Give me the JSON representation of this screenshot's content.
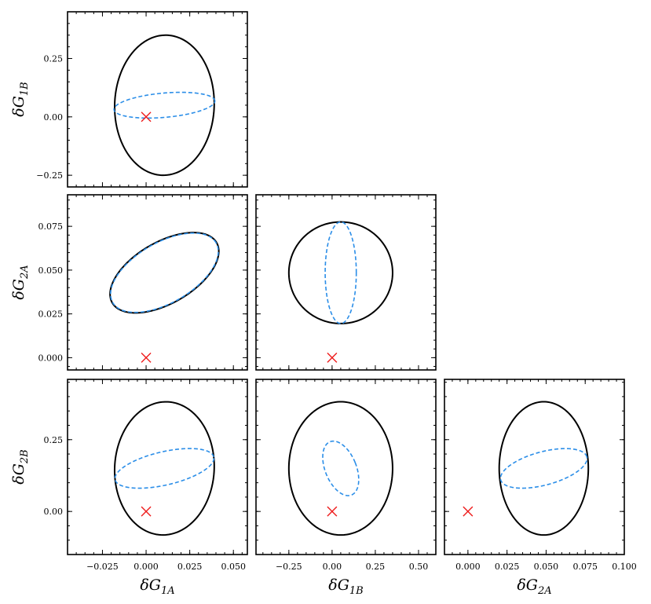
{
  "chart_data": {
    "type": "corner",
    "title": "",
    "legend": "none",
    "grid": false,
    "variables": [
      {
        "key": "G1A",
        "label": "δG",
        "sub": "1A",
        "range": [
          -0.045,
          0.058
        ],
        "ticks": [
          -0.025,
          0.0,
          0.025,
          0.05
        ],
        "tick_labels": [
          "−0.025",
          "0.000",
          "0.025",
          "0.050"
        ]
      },
      {
        "key": "G1B",
        "label": "δG",
        "sub": "1B",
        "range": [
          -0.44,
          0.6
        ],
        "ticks": [
          -0.25,
          0.0,
          0.25,
          0.5
        ],
        "tick_labels": [
          "−0.25",
          "0.00",
          "0.25",
          "0.50"
        ],
        "ylim": [
          -0.3,
          0.45
        ],
        "yticks": [
          -0.25,
          0.0,
          0.25
        ],
        "ytick_labels": [
          "−0.25",
          "0.00",
          "0.25"
        ]
      },
      {
        "key": "G2A",
        "label": "δG",
        "sub": "2A",
        "range": [
          -0.015,
          0.1
        ],
        "ticks": [
          0.0,
          0.025,
          0.05,
          0.075,
          0.1
        ],
        "tick_labels": [
          "0.000",
          "0.025",
          "0.050",
          "0.075",
          "0.100"
        ],
        "ylim": [
          -0.007,
          0.093
        ],
        "yticks": [
          0.0,
          0.025,
          0.05,
          0.075
        ],
        "ytick_labels": [
          "0.000",
          "0.025",
          "0.050",
          "0.075"
        ]
      },
      {
        "key": "G2B",
        "label": "δG",
        "sub": "2B",
        "ylim": [
          -0.15,
          0.46
        ],
        "yticks": [
          0.0,
          0.25
        ],
        "ytick_labels": [
          "0.00",
          "0.25"
        ]
      }
    ],
    "panels": [
      {
        "name": "G1A-vs-G1B",
        "x": "G1A",
        "y": "G1B",
        "marker": [
          0,
          0
        ],
        "ellipses": [
          {
            "style": "solid-black",
            "cx": 0.0105,
            "cy": 0.05,
            "rx": 0.0285,
            "ry": 0.3,
            "angle": -2.0
          },
          {
            "style": "dashed-blue",
            "cx": 0.0105,
            "cy": 0.05,
            "rx": 0.029,
            "ry": 0.052,
            "angle": 5.0
          }
        ]
      },
      {
        "name": "G1A-vs-G2A",
        "x": "G1A",
        "y": "G2A",
        "marker": [
          0,
          0
        ],
        "ellipses": [
          {
            "style": "solid-black",
            "cx": 0.0105,
            "cy": 0.0485,
            "rx": 0.0345,
            "ry": 0.0175,
            "angle": 30.0
          },
          {
            "style": "dashed-blue",
            "cx": 0.0105,
            "cy": 0.0485,
            "rx": 0.0342,
            "ry": 0.0172,
            "angle": 30.0
          }
        ]
      },
      {
        "name": "G1B-vs-G2A",
        "x": "G1B",
        "y": "G2A",
        "marker": [
          0,
          0
        ],
        "ellipses": [
          {
            "style": "solid-black",
            "cx": 0.05,
            "cy": 0.0485,
            "rx": 0.3,
            "ry": 0.029,
            "angle": 0.0
          },
          {
            "style": "dashed-blue",
            "cx": 0.05,
            "cy": 0.0485,
            "rx": 0.09,
            "ry": 0.029,
            "angle": 0.0
          }
        ]
      },
      {
        "name": "G1A-vs-G2B",
        "x": "G1A",
        "y": "G2B",
        "marker": [
          0,
          0
        ],
        "ellipses": [
          {
            "style": "solid-black",
            "cx": 0.0105,
            "cy": 0.15,
            "rx": 0.0285,
            "ry": 0.232,
            "angle": -3.0
          },
          {
            "style": "dashed-blue",
            "cx": 0.0105,
            "cy": 0.15,
            "rx": 0.029,
            "ry": 0.058,
            "angle": 13.0
          }
        ]
      },
      {
        "name": "G1B-vs-G2B",
        "x": "G1B",
        "y": "G2B",
        "marker": [
          0,
          0
        ],
        "ellipses": [
          {
            "style": "solid-black",
            "cx": 0.05,
            "cy": 0.15,
            "rx": 0.3,
            "ry": 0.232,
            "angle": 0.0
          },
          {
            "style": "dashed-blue",
            "cx": 0.05,
            "cy": 0.15,
            "rx": 0.09,
            "ry": 0.1,
            "angle": 22.0
          }
        ]
      },
      {
        "name": "G2A-vs-G2B",
        "x": "G2A",
        "y": "G2B",
        "marker": [
          0,
          0
        ],
        "ellipses": [
          {
            "style": "solid-black",
            "cx": 0.0485,
            "cy": 0.15,
            "rx": 0.0285,
            "ry": 0.232,
            "angle": 0.0
          },
          {
            "style": "dashed-blue",
            "cx": 0.0485,
            "cy": 0.15,
            "rx": 0.0285,
            "ry": 0.058,
            "angle": 15.0
          }
        ]
      }
    ]
  },
  "colors": {
    "solid-black": "#000000",
    "dashed-blue": "#2b8ee8",
    "marker": "#ee1c1c",
    "frame": "#000000"
  }
}
